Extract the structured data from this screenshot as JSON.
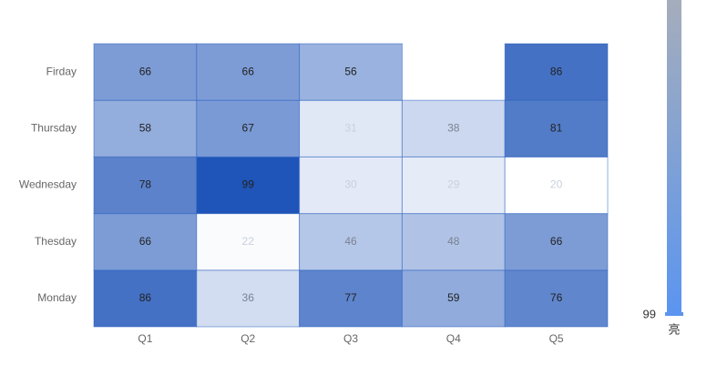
{
  "chart_data": {
    "type": "heatmap",
    "x": [
      "Q1",
      "Q2",
      "Q3",
      "Q4",
      "Q5"
    ],
    "categories": [
      "Monday",
      "Thesday",
      "Wednesday",
      "Thursday",
      "Firday"
    ],
    "series": [
      {
        "name": "Monday",
        "values": [
          86,
          36,
          77,
          59,
          76
        ]
      },
      {
        "name": "Thesday",
        "values": [
          66,
          22,
          46,
          48,
          66
        ]
      },
      {
        "name": "Wednesday",
        "values": [
          78,
          99,
          30,
          29,
          20
        ]
      },
      {
        "name": "Thursday",
        "values": [
          58,
          67,
          31,
          38,
          81
        ]
      },
      {
        "name": "Firday",
        "values": [
          66,
          66,
          56,
          null,
          86
        ]
      }
    ],
    "color": "#1f55b8",
    "visual_map": {
      "max": 99,
      "label": "亮",
      "colors": [
        "#a5adbb",
        "#5b95f0"
      ]
    }
  }
}
